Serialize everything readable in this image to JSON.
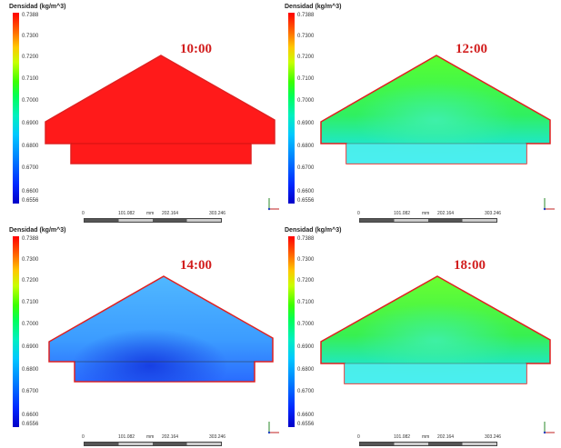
{
  "legend": {
    "title": "Densidad (kg/m^3)",
    "ticks": [
      "0.7388",
      "0.7300",
      "0.7200",
      "0.7100",
      "0.7000",
      "0.6900",
      "0.6800",
      "0.6700",
      "0.6600",
      "0.6556"
    ]
  },
  "scale": {
    "zero": "0",
    "v1": "101.082",
    "unit": "mm",
    "v2": "202.164",
    "v3": "303.246"
  },
  "panels": [
    {
      "time": "10:00",
      "state": "uniform-red"
    },
    {
      "time": "12:00",
      "state": "green-cyan"
    },
    {
      "time": "14:00",
      "state": "blue"
    },
    {
      "time": "18:00",
      "state": "green-cyan"
    }
  ],
  "colors": {
    "time_label": "#d21e1e",
    "outline": "#e02020"
  }
}
